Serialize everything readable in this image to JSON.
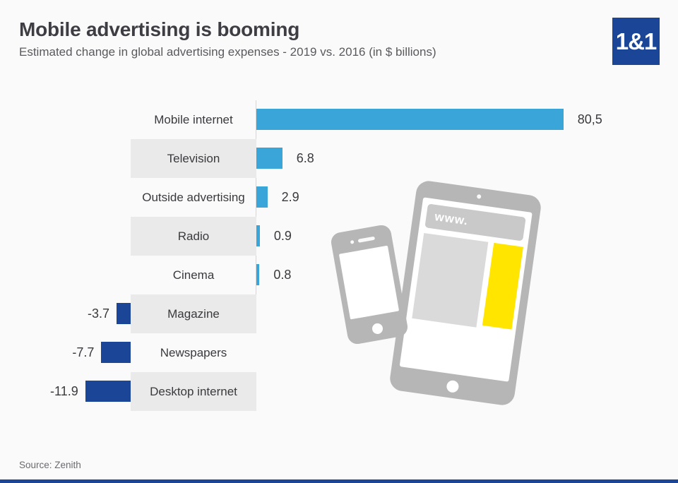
{
  "header": {
    "title": "Mobile advertising is booming",
    "subtitle": "Estimated change in global advertising expenses - 2019 vs. 2016 (in $ billions)"
  },
  "logo": {
    "text": "1&1",
    "background": "#1b4697",
    "text_color": "#ffffff"
  },
  "chart_data": {
    "type": "bar",
    "orientation": "horizontal",
    "title": "Mobile advertising is booming",
    "subtitle": "Estimated change in global advertising expenses - 2019 vs. 2016 (in $ billions)",
    "unit": "$ billions",
    "categories": [
      "Mobile internet",
      "Television",
      "Outside advertising",
      "Radio",
      "Cinema",
      "Magazine",
      "Newspapers",
      "Desktop internet"
    ],
    "values": [
      80.5,
      6.8,
      2.9,
      0.9,
      0.8,
      -3.7,
      -7.7,
      -11.9
    ],
    "value_labels": [
      "80,5",
      "6.8",
      "2.9",
      "0.9",
      "0.8",
      "-3.7",
      "-7.7",
      "-11.9"
    ],
    "xlabel": "",
    "ylabel": "",
    "grid": false,
    "legend": false,
    "positive_color": "#3aa5d9",
    "negative_color": "#1b4697",
    "band_color": "#eaeaea"
  },
  "illustration": {
    "www_label": "www.",
    "device_color": "#b6b6b6",
    "accent_color": "#ffe500"
  },
  "footer": {
    "source": "Source: Zenith"
  }
}
